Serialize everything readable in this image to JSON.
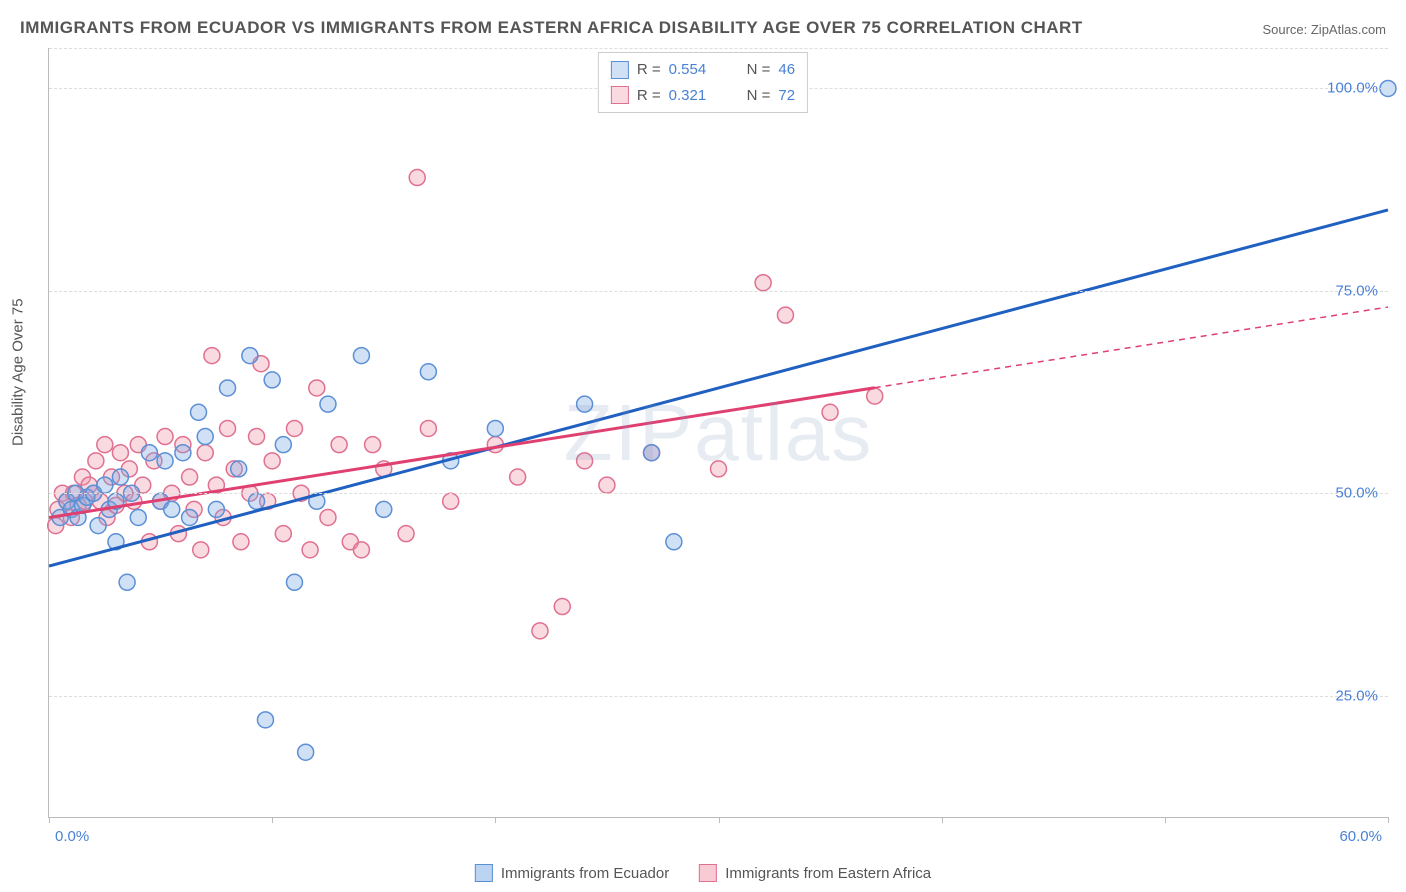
{
  "title": "IMMIGRANTS FROM ECUADOR VS IMMIGRANTS FROM EASTERN AFRICA DISABILITY AGE OVER 75 CORRELATION CHART",
  "source": "Source: ZipAtlas.com",
  "watermark": "ZIPatlas",
  "y_axis_label": "Disability Age Over 75",
  "chart": {
    "type": "scatter",
    "xlim": [
      0,
      60
    ],
    "ylim": [
      10,
      105
    ],
    "x_ticks": [
      0,
      10,
      20,
      30,
      40,
      50,
      60
    ],
    "y_gridlines": [
      25,
      50,
      75,
      100
    ],
    "y_tick_labels": [
      "25.0%",
      "50.0%",
      "75.0%",
      "100.0%"
    ],
    "x_min_label": "0.0%",
    "x_max_label": "60.0%",
    "background_color": "#ffffff",
    "grid_color": "#dddddd",
    "axis_color": "#bbbbbb",
    "marker_radius": 8,
    "marker_stroke_width": 1.5,
    "trend_line_width": 3
  },
  "series": [
    {
      "name": "Immigrants from Ecuador",
      "color_fill": "rgba(120,170,230,0.35)",
      "color_stroke": "#5b8fd6",
      "trend_color": "#2060c0",
      "r": "0.554",
      "n": "46",
      "trend": {
        "x1": 0,
        "y1": 41,
        "x2": 60,
        "y2": 85,
        "dashed_from_x": null
      },
      "points": [
        [
          0.5,
          47
        ],
        [
          0.8,
          49
        ],
        [
          1,
          48
        ],
        [
          1.2,
          50
        ],
        [
          1.3,
          47
        ],
        [
          1.5,
          48.5
        ],
        [
          1.7,
          49.5
        ],
        [
          2,
          50
        ],
        [
          2.2,
          46
        ],
        [
          2.5,
          51
        ],
        [
          2.7,
          48
        ],
        [
          3,
          49
        ],
        [
          3.2,
          52
        ],
        [
          3.5,
          39
        ],
        [
          3.7,
          50
        ],
        [
          4,
          47
        ],
        [
          4.5,
          55
        ],
        [
          5,
          49
        ],
        [
          5.2,
          54
        ],
        [
          5.5,
          48
        ],
        [
          6,
          55
        ],
        [
          6.3,
          47
        ],
        [
          6.7,
          60
        ],
        [
          7,
          57
        ],
        [
          7.5,
          48
        ],
        [
          8,
          63
        ],
        [
          8.5,
          53
        ],
        [
          9,
          67
        ],
        [
          9.3,
          49
        ],
        [
          9.7,
          22
        ],
        [
          10,
          64
        ],
        [
          10.5,
          56
        ],
        [
          11,
          39
        ],
        [
          11.5,
          18
        ],
        [
          12,
          49
        ],
        [
          12.5,
          61
        ],
        [
          14,
          67
        ],
        [
          15,
          48
        ],
        [
          17,
          65
        ],
        [
          18,
          54
        ],
        [
          20,
          58
        ],
        [
          24,
          61
        ],
        [
          27,
          55
        ],
        [
          28,
          44
        ],
        [
          60,
          100
        ],
        [
          3,
          44
        ]
      ]
    },
    {
      "name": "Immigrants from Eastern Africa",
      "color_fill": "rgba(240,150,170,0.35)",
      "color_stroke": "#e07090",
      "trend_color": "#e04070",
      "r": "0.321",
      "n": "72",
      "trend": {
        "x1": 0,
        "y1": 47,
        "x2": 60,
        "y2": 73,
        "dashed_from_x": 37
      },
      "points": [
        [
          0.4,
          48
        ],
        [
          0.6,
          50
        ],
        [
          0.8,
          49
        ],
        [
          1,
          47
        ],
        [
          1.1,
          50
        ],
        [
          1.3,
          48.5
        ],
        [
          1.5,
          52
        ],
        [
          1.6,
          49
        ],
        [
          1.8,
          51
        ],
        [
          2,
          50
        ],
        [
          2.1,
          54
        ],
        [
          2.3,
          49
        ],
        [
          2.5,
          56
        ],
        [
          2.6,
          47
        ],
        [
          2.8,
          52
        ],
        [
          3,
          48.5
        ],
        [
          3.2,
          55
        ],
        [
          3.4,
          50
        ],
        [
          3.6,
          53
        ],
        [
          3.8,
          49
        ],
        [
          4,
          56
        ],
        [
          4.2,
          51
        ],
        [
          4.5,
          44
        ],
        [
          4.7,
          54
        ],
        [
          5,
          49
        ],
        [
          5.2,
          57
        ],
        [
          5.5,
          50
        ],
        [
          5.8,
          45
        ],
        [
          6,
          56
        ],
        [
          6.3,
          52
        ],
        [
          6.5,
          48
        ],
        [
          6.8,
          43
        ],
        [
          7,
          55
        ],
        [
          7.3,
          67
        ],
        [
          7.5,
          51
        ],
        [
          7.8,
          47
        ],
        [
          8,
          58
        ],
        [
          8.3,
          53
        ],
        [
          8.6,
          44
        ],
        [
          9,
          50
        ],
        [
          9.3,
          57
        ],
        [
          9.5,
          66
        ],
        [
          9.8,
          49
        ],
        [
          10,
          54
        ],
        [
          10.5,
          45
        ],
        [
          11,
          58
        ],
        [
          11.3,
          50
        ],
        [
          11.7,
          43
        ],
        [
          12,
          63
        ],
        [
          12.5,
          47
        ],
        [
          13,
          56
        ],
        [
          13.5,
          44
        ],
        [
          14,
          43
        ],
        [
          14.5,
          56
        ],
        [
          15,
          53
        ],
        [
          16,
          45
        ],
        [
          16.5,
          89
        ],
        [
          17,
          58
        ],
        [
          18,
          49
        ],
        [
          20,
          56
        ],
        [
          21,
          52
        ],
        [
          22,
          33
        ],
        [
          23,
          36
        ],
        [
          24,
          54
        ],
        [
          25,
          51
        ],
        [
          27,
          55
        ],
        [
          30,
          53
        ],
        [
          32,
          76
        ],
        [
          33,
          72
        ],
        [
          35,
          60
        ],
        [
          37,
          62
        ],
        [
          0.3,
          46
        ]
      ]
    }
  ],
  "legend_top": {
    "r_label": "R =",
    "n_label": "N ="
  },
  "legend_bottom": [
    {
      "label": "Immigrants from Ecuador",
      "swatch_fill": "rgba(120,170,230,0.5)",
      "swatch_stroke": "#5b8fd6"
    },
    {
      "label": "Immigrants from Eastern Africa",
      "swatch_fill": "rgba(240,150,170,0.5)",
      "swatch_stroke": "#e07090"
    }
  ]
}
